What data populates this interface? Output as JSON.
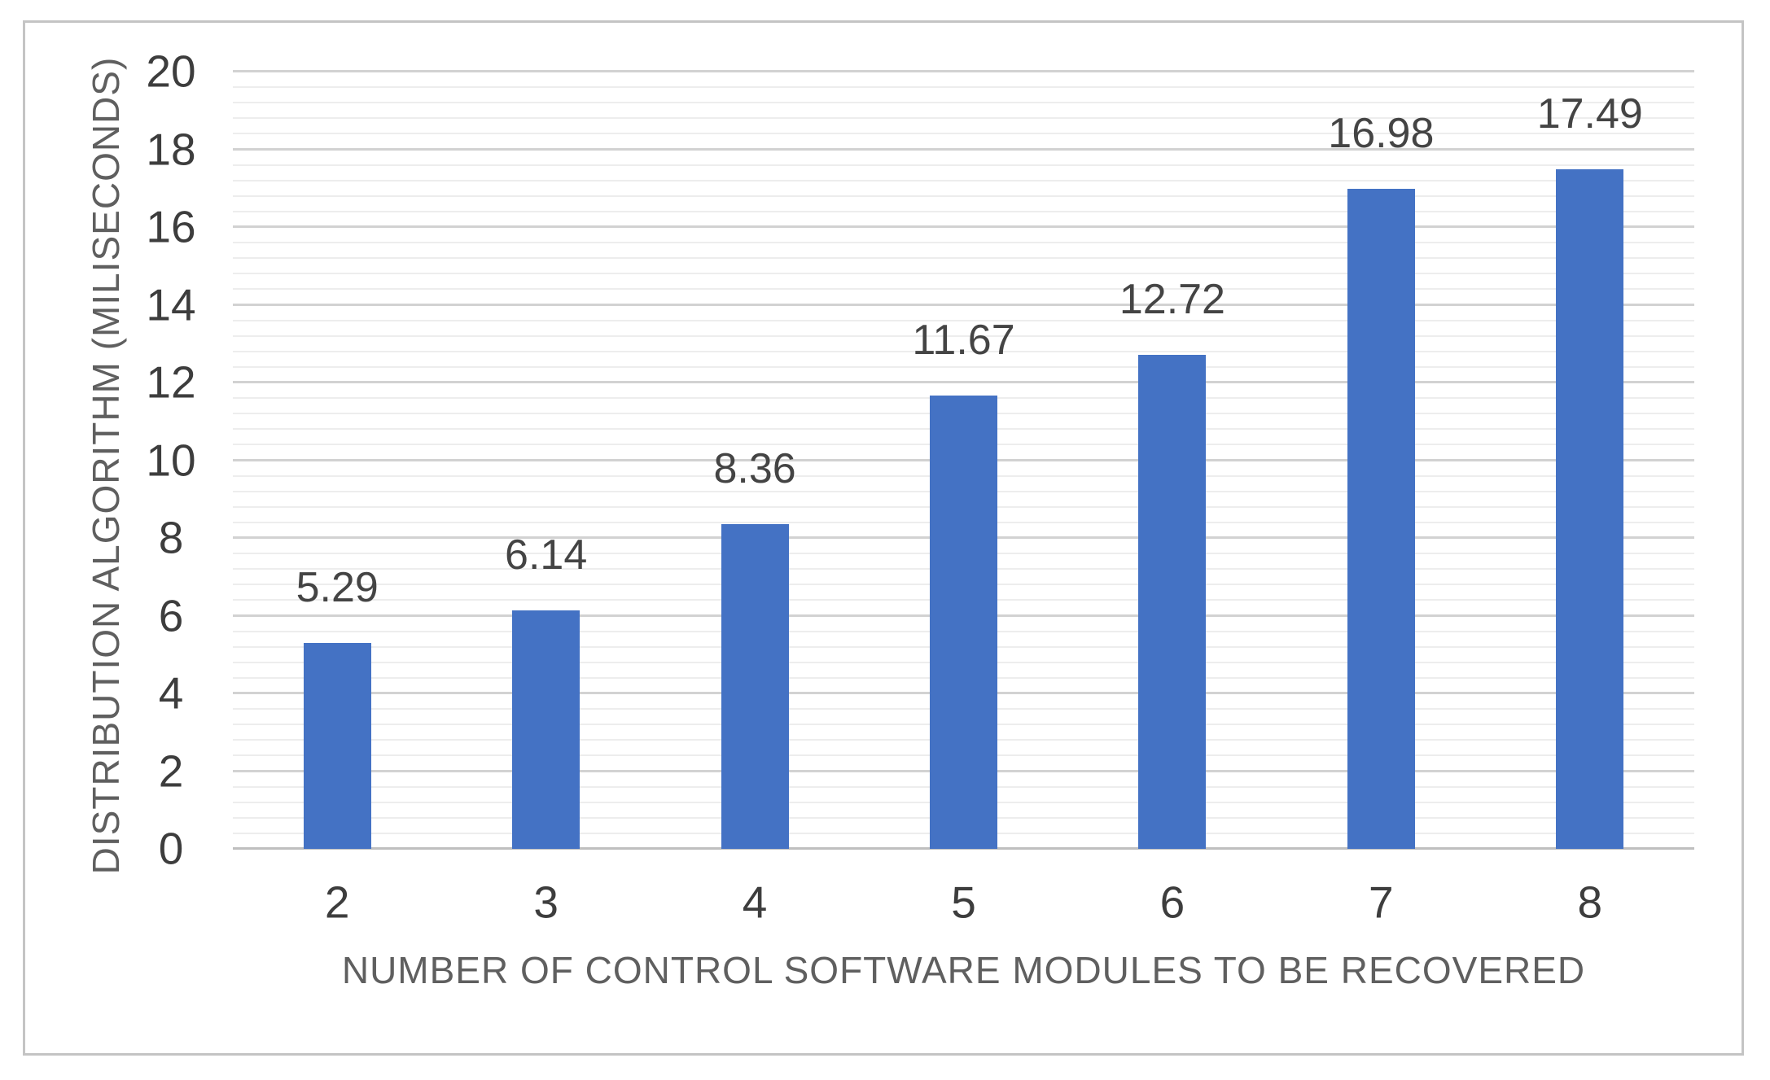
{
  "chart_data": {
    "type": "bar",
    "title": "",
    "xlabel": "NUMBER OF CONTROL SOFTWARE MODULES TO BE RECOVERED",
    "ylabel": "DISTRIBUTION ALGORITHM (MILISECONDS)",
    "categories": [
      "2",
      "3",
      "4",
      "5",
      "6",
      "7",
      "8"
    ],
    "values": [
      5.29,
      6.14,
      8.36,
      11.67,
      12.72,
      16.98,
      17.49
    ],
    "data_labels": [
      "5.29",
      "6.14",
      "8.36",
      "11.67",
      "12.72",
      "16.98",
      "17.49"
    ],
    "ylim": [
      0,
      20
    ],
    "y_major_unit": 2,
    "y_minor_unit": 0.4,
    "yticks": [
      "0",
      "2",
      "4",
      "6",
      "8",
      "10",
      "12",
      "14",
      "16",
      "18",
      "20"
    ],
    "grid": "horizontal major and minor gridlines",
    "legend": "none",
    "colors": {
      "bar": "#4472c4",
      "major_gridline": "#d2d2d2",
      "minor_gridline": "#ededed",
      "axis_line": "#bfbfbf",
      "tick_label": "#3d3d3d",
      "data_label": "#444444",
      "axis_title": "#5f5f5f",
      "frame_border": "#c4c4c4",
      "background": "#ffffff"
    }
  }
}
